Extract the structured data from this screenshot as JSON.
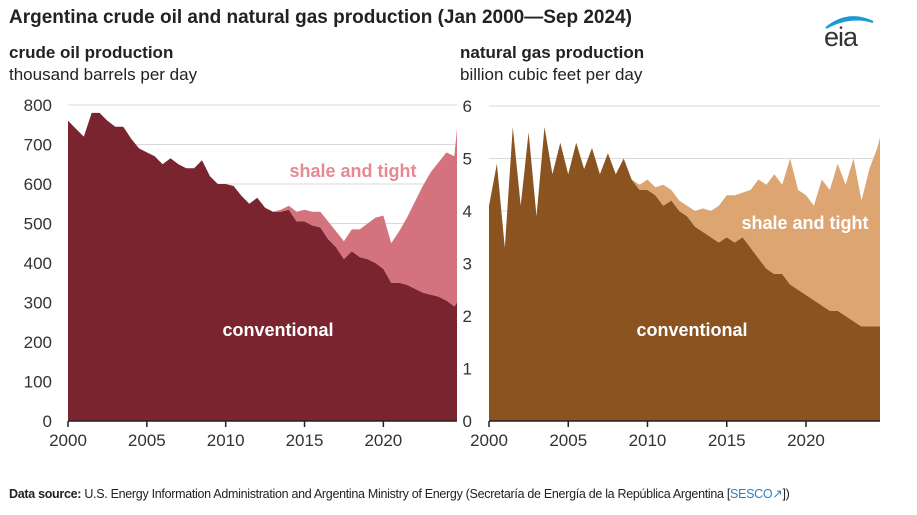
{
  "title": "Argentina crude oil and natural gas production (Jan 2000—Sep 2024)",
  "logo_text": "eia",
  "footer": {
    "label": "Data source:",
    "text": "U.S. Energy Information Administration and Argentina Ministry of Energy (Secretaría de Energía de la República Argentina [",
    "link": "SESCO",
    "link_icon": "external-link-icon",
    "end": "])"
  },
  "colors": {
    "oil_conventional": "#7a2430",
    "oil_shale": "#d4737d",
    "oil_shale_label": "#e58a93",
    "gas_conventional": "#8b5320",
    "gas_shale": "#dca571",
    "grid": "#d9d9d9",
    "logo_arc": "#1b9ad6"
  },
  "chart_data": [
    {
      "type": "area",
      "stacked": true,
      "title": "crude oil production",
      "ylabel": "thousand barrels per day",
      "xlim": [
        2000,
        2024.67
      ],
      "ylim": [
        0,
        800
      ],
      "yticks": [
        0,
        100,
        200,
        300,
        400,
        500,
        600,
        700,
        800
      ],
      "xticks": [
        2000,
        2005,
        2010,
        2015,
        2020
      ],
      "grid": true,
      "x": [
        2000,
        2000.5,
        2001,
        2001.5,
        2002,
        2002.5,
        2003,
        2003.5,
        2004,
        2004.5,
        2005,
        2005.5,
        2006,
        2006.5,
        2007,
        2007.5,
        2008,
        2008.5,
        2009,
        2009.5,
        2010,
        2010.5,
        2011,
        2011.5,
        2012,
        2012.5,
        2013,
        2013.5,
        2014,
        2014.5,
        2015,
        2015.5,
        2016,
        2016.5,
        2017,
        2017.5,
        2018,
        2018.5,
        2019,
        2019.5,
        2020,
        2020.5,
        2021,
        2021.5,
        2022,
        2022.5,
        2023,
        2023.5,
        2024,
        2024.5,
        2024.67
      ],
      "series": [
        {
          "name": "conventional",
          "values": [
            760,
            740,
            720,
            780,
            780,
            760,
            745,
            745,
            715,
            690,
            680,
            670,
            650,
            665,
            650,
            640,
            640,
            660,
            620,
            600,
            600,
            595,
            570,
            550,
            565,
            540,
            530,
            530,
            535,
            505,
            505,
            495,
            490,
            460,
            440,
            410,
            430,
            415,
            410,
            400,
            385,
            350,
            350,
            345,
            335,
            325,
            320,
            315,
            305,
            290,
            300
          ]
        },
        {
          "name": "shale and tight",
          "values": [
            0,
            0,
            0,
            0,
            0,
            0,
            0,
            0,
            0,
            0,
            0,
            0,
            0,
            0,
            0,
            0,
            0,
            0,
            0,
            0,
            0,
            0,
            0,
            0,
            0,
            0,
            0,
            5,
            10,
            25,
            30,
            35,
            40,
            45,
            40,
            45,
            55,
            70,
            90,
            115,
            135,
            100,
            130,
            170,
            220,
            270,
            310,
            340,
            375,
            380,
            440
          ]
        }
      ]
    },
    {
      "type": "area",
      "stacked": true,
      "title": "natural gas production",
      "ylabel": "billion cubic feet per day",
      "xlim": [
        2000,
        2024.67
      ],
      "ylim": [
        0,
        6
      ],
      "yticks": [
        0,
        1,
        2,
        3,
        4,
        5,
        6
      ],
      "xticks": [
        2000,
        2005,
        2010,
        2015,
        2020
      ],
      "grid": true,
      "x": [
        2000,
        2000.5,
        2001,
        2001.5,
        2002,
        2002.5,
        2003,
        2003.5,
        2004,
        2004.5,
        2005,
        2005.5,
        2006,
        2006.5,
        2007,
        2007.5,
        2008,
        2008.5,
        2009,
        2009.5,
        2010,
        2010.5,
        2011,
        2011.5,
        2012,
        2012.5,
        2013,
        2013.5,
        2014,
        2014.5,
        2015,
        2015.5,
        2016,
        2016.5,
        2017,
        2017.5,
        2018,
        2018.5,
        2019,
        2019.5,
        2020,
        2020.5,
        2021,
        2021.5,
        2022,
        2022.5,
        2023,
        2023.5,
        2024,
        2024.5,
        2024.67
      ],
      "series": [
        {
          "name": "conventional",
          "values": [
            4.1,
            4.9,
            3.3,
            5.6,
            4.1,
            5.5,
            3.9,
            5.6,
            4.7,
            5.3,
            4.7,
            5.3,
            4.8,
            5.2,
            4.7,
            5.1,
            4.7,
            5.0,
            4.6,
            4.4,
            4.4,
            4.3,
            4.1,
            4.2,
            4.0,
            3.9,
            3.7,
            3.6,
            3.5,
            3.4,
            3.5,
            3.4,
            3.5,
            3.3,
            3.1,
            2.9,
            2.8,
            2.8,
            2.6,
            2.5,
            2.4,
            2.3,
            2.2,
            2.1,
            2.1,
            2.0,
            1.9,
            1.8,
            1.8,
            1.8,
            1.8
          ]
        },
        {
          "name": "shale and tight",
          "values": [
            0,
            0,
            0,
            0,
            0,
            0,
            0,
            0,
            0,
            0,
            0,
            0,
            0,
            0,
            0,
            0,
            0,
            0,
            0,
            0.1,
            0.2,
            0.15,
            0.4,
            0.2,
            0.2,
            0.2,
            0.3,
            0.45,
            0.5,
            0.7,
            0.8,
            0.9,
            0.85,
            1.1,
            1.5,
            1.6,
            1.9,
            1.7,
            2.4,
            1.9,
            1.9,
            1.8,
            2.4,
            2.3,
            2.8,
            2.5,
            3.1,
            2.4,
            3.0,
            3.4,
            3.6
          ]
        }
      ]
    }
  ]
}
